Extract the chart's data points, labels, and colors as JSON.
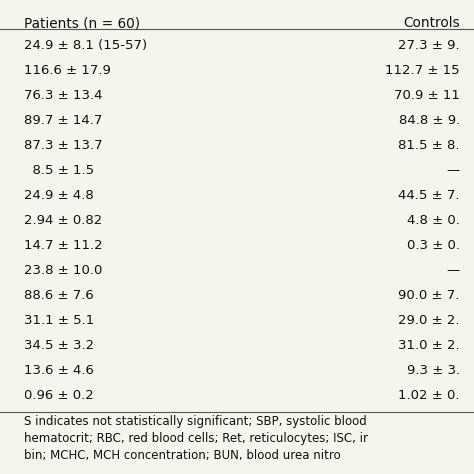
{
  "header": [
    "Patients (n = 60)",
    "Controls"
  ],
  "rows": [
    [
      "24.9 ± 8.1 (15-57)",
      "27.3 ± 9."
    ],
    [
      "116.6 ± 17.9",
      "112.7 ± 15"
    ],
    [
      "76.3 ± 13.4",
      "70.9 ± 11"
    ],
    [
      "89.7 ± 14.7",
      "84.8 ± 9."
    ],
    [
      "87.3 ± 13.7",
      "81.5 ± 8."
    ],
    [
      "  8.5 ± 1.5",
      "—"
    ],
    [
      "24.9 ± 4.8",
      "44.5 ± 7."
    ],
    [
      "2.94 ± 0.82",
      "4.8 ± 0."
    ],
    [
      "14.7 ± 11.2",
      "0.3 ± 0."
    ],
    [
      "23.8 ± 10.0",
      "—"
    ],
    [
      "88.6 ± 7.6",
      "90.0 ± 7."
    ],
    [
      "31.1 ± 5.1",
      "29.0 ± 2."
    ],
    [
      "34.5 ± 3.2",
      "31.0 ± 2."
    ],
    [
      "13.6 ± 4.6",
      "9.3 ± 3."
    ],
    [
      "0.96 ± 0.2",
      "1.02 ± 0."
    ]
  ],
  "footnote": "S indicates not statistically significant; SBP, systolic blood\nhematocrit; RBC, red blood cells; Ret, reticulocytes; ISC, ir\nbin; MCHC, MCH concentration; BUN, blood urea nitro",
  "bg_color": "#f5f5f0",
  "line_color": "#555555",
  "text_color": "#111111",
  "font_size": 9.5,
  "header_font_size": 9.8,
  "footnote_font_size": 8.5
}
